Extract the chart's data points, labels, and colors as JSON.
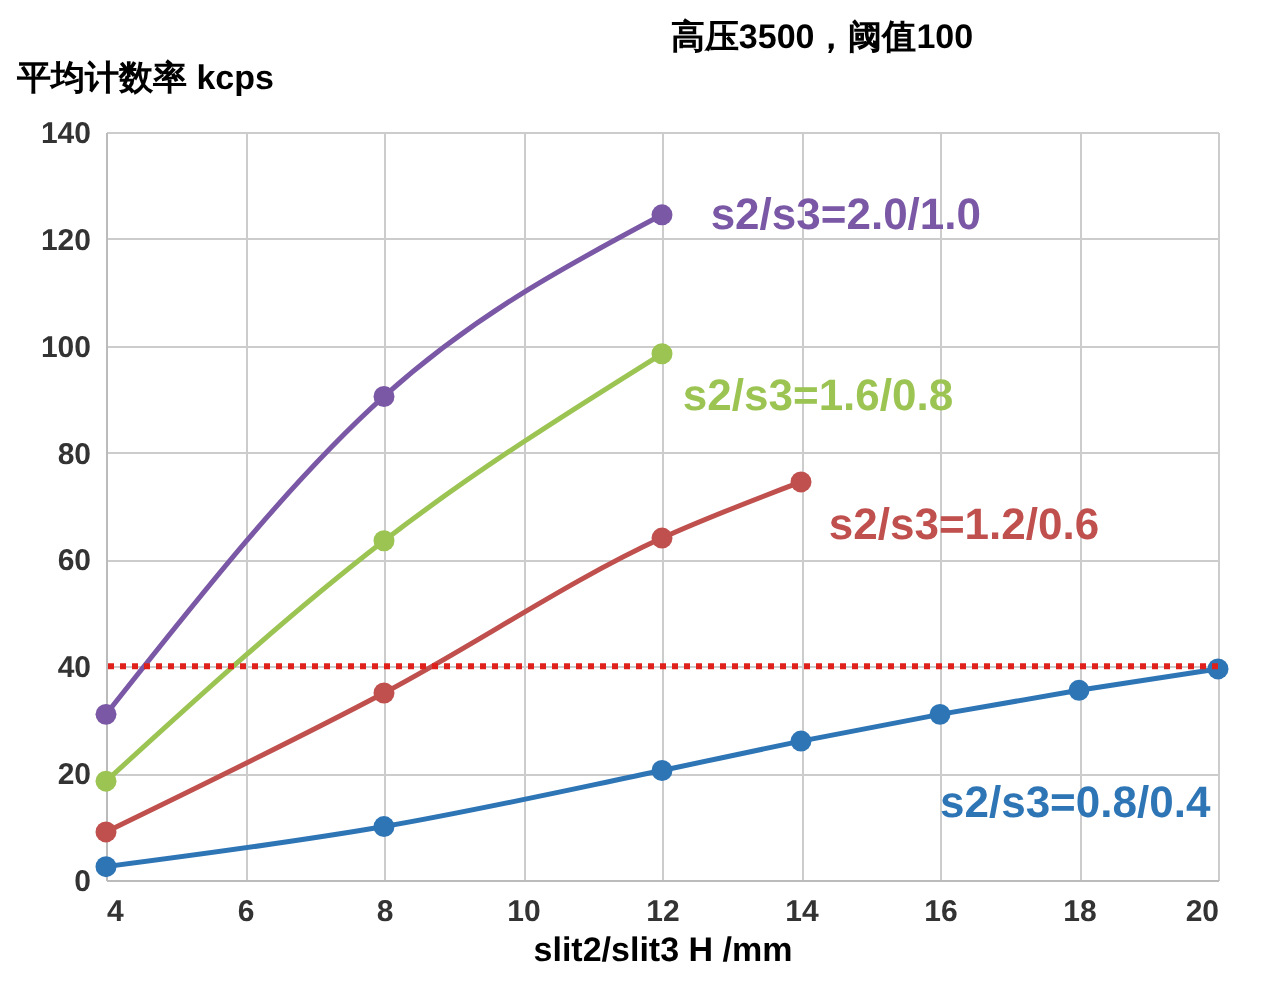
{
  "chart_data": {
    "type": "line",
    "title": "高压3500，阈值100",
    "ylabel": "平均计数率 kcps",
    "xlabel": "slit2/slit3 H  /mm",
    "xlim": [
      4,
      20
    ],
    "xticks": [
      4,
      6,
      8,
      10,
      12,
      14,
      16,
      18,
      20
    ],
    "ylim": [
      0,
      140
    ],
    "yticks": [
      0,
      20,
      40,
      60,
      80,
      100,
      120,
      140
    ],
    "grid": true,
    "legend": false,
    "marker": "circle",
    "line_style": "solid",
    "series": [
      {
        "name": "s2/s3=2.0/1.0",
        "color": "#7a58a6",
        "x": [
          4,
          8,
          12
        ],
        "values": [
          31,
          90.5,
          124.5
        ]
      },
      {
        "name": "s2/s3=1.6/0.8",
        "color": "#9bc453",
        "x": [
          4,
          8,
          12
        ],
        "values": [
          18.5,
          63.5,
          98.5
        ]
      },
      {
        "name": "s2/s3=1.2/0.6",
        "color": "#c0504d",
        "x": [
          4,
          8,
          12,
          14
        ],
        "values": [
          9,
          35,
          64,
          74.5
        ]
      },
      {
        "name": "s2/s3=0.8/0.4",
        "color": "#2e75b6",
        "x": [
          4,
          8,
          12,
          14,
          16,
          18,
          20
        ],
        "values": [
          2.5,
          10,
          20.5,
          26,
          31,
          35.5,
          39.5
        ]
      }
    ],
    "ref_lines": [
      {
        "axis": "y",
        "value": 40,
        "color": "#e0201b",
        "line_style": "dotted"
      }
    ]
  }
}
